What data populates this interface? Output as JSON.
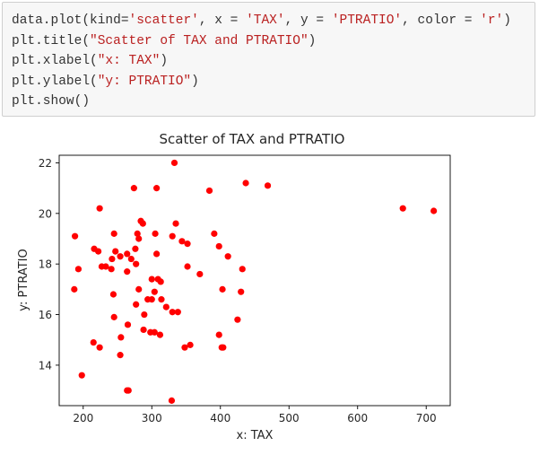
{
  "code_cell": {
    "lines": [
      [
        {
          "t": "data.plot(kind="
        },
        {
          "t": "'scatter'",
          "s": 1
        },
        {
          "t": ", x = "
        },
        {
          "t": "'TAX'",
          "s": 1
        },
        {
          "t": ", y = "
        },
        {
          "t": "'PTRATIO'",
          "s": 1
        },
        {
          "t": ", color = "
        },
        {
          "t": "'r'",
          "s": 1
        },
        {
          "t": ")"
        }
      ],
      [
        {
          "t": "plt.title("
        },
        {
          "t": "\"Scatter of TAX and PTRATIO\"",
          "s": 1
        },
        {
          "t": ")"
        }
      ],
      [
        {
          "t": "plt.xlabel("
        },
        {
          "t": "\"x: TAX\"",
          "s": 1
        },
        {
          "t": ")"
        }
      ],
      [
        {
          "t": "plt.ylabel("
        },
        {
          "t": "\"y: PTRATIO\"",
          "s": 1
        },
        {
          "t": ")"
        }
      ],
      [
        {
          "t": "plt.show()"
        }
      ]
    ]
  },
  "chart_data": {
    "type": "scatter",
    "title": "Scatter of TAX and PTRATIO",
    "xlabel": "x: TAX",
    "ylabel": "y: PTRATIO",
    "xlim": [
      165,
      735
    ],
    "ylim": [
      12.4,
      22.3
    ],
    "xticks": [
      200,
      300,
      400,
      500,
      600,
      700
    ],
    "yticks": [
      14,
      16,
      18,
      20,
      22
    ],
    "grid": false,
    "color": "#ff0000",
    "points": [
      [
        333,
        22.0
      ],
      [
        274,
        21.0
      ],
      [
        307,
        21.0
      ],
      [
        384,
        20.9
      ],
      [
        437,
        21.2
      ],
      [
        469,
        21.1
      ],
      [
        666,
        20.2
      ],
      [
        711,
        20.1
      ],
      [
        188,
        19.1
      ],
      [
        224,
        20.2
      ],
      [
        284,
        19.7
      ],
      [
        287,
        19.6
      ],
      [
        279,
        19.2
      ],
      [
        305,
        19.2
      ],
      [
        330,
        19.1
      ],
      [
        391,
        19.2
      ],
      [
        335,
        19.6
      ],
      [
        245,
        19.2
      ],
      [
        193,
        17.8
      ],
      [
        216,
        18.6
      ],
      [
        222,
        18.5
      ],
      [
        233,
        17.9
      ],
      [
        242,
        18.2
      ],
      [
        247,
        18.5
      ],
      [
        254,
        18.3
      ],
      [
        264,
        18.4
      ],
      [
        270,
        18.2
      ],
      [
        276,
        18.6
      ],
      [
        277,
        18.0
      ],
      [
        281,
        19.0
      ],
      [
        307,
        18.4
      ],
      [
        344,
        18.9
      ],
      [
        352,
        18.8
      ],
      [
        398,
        18.7
      ],
      [
        411,
        18.3
      ],
      [
        432,
        17.8
      ],
      [
        187,
        17.0
      ],
      [
        227,
        17.9
      ],
      [
        241,
        17.8
      ],
      [
        264,
        17.7
      ],
      [
        300,
        17.4
      ],
      [
        309,
        17.4
      ],
      [
        313,
        17.3
      ],
      [
        352,
        17.9
      ],
      [
        370,
        17.6
      ],
      [
        403,
        17.0
      ],
      [
        430,
        16.9
      ],
      [
        244,
        16.8
      ],
      [
        277,
        16.4
      ],
      [
        281,
        17.0
      ],
      [
        294,
        16.6
      ],
      [
        300,
        16.6
      ],
      [
        304,
        16.9
      ],
      [
        314,
        16.6
      ],
      [
        321,
        16.3
      ],
      [
        330,
        16.1
      ],
      [
        338,
        16.1
      ],
      [
        289,
        16.0
      ],
      [
        245,
        15.9
      ],
      [
        265,
        15.6
      ],
      [
        288,
        15.4
      ],
      [
        298,
        15.3
      ],
      [
        304,
        15.3
      ],
      [
        312,
        15.2
      ],
      [
        398,
        15.2
      ],
      [
        425,
        15.8
      ],
      [
        215,
        14.9
      ],
      [
        224,
        14.7
      ],
      [
        254,
        14.4
      ],
      [
        255,
        15.1
      ],
      [
        348,
        14.7
      ],
      [
        356,
        14.8
      ],
      [
        402,
        14.7
      ],
      [
        404,
        14.7
      ],
      [
        198,
        13.6
      ],
      [
        264,
        13.0
      ],
      [
        266,
        13.0
      ],
      [
        329,
        12.6
      ]
    ]
  }
}
